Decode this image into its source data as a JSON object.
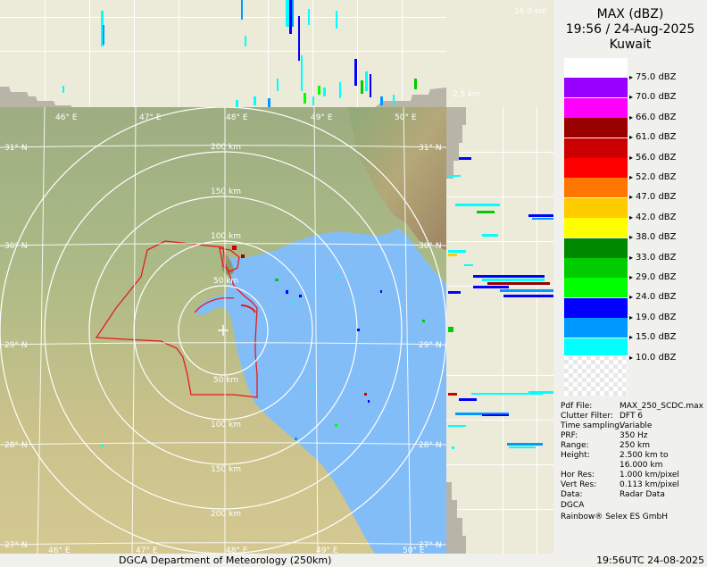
{
  "product": {
    "title": "MAX (dBZ)",
    "datetime": "19:56 / 24-Aug-2025",
    "site": "Kuwait"
  },
  "profiles": {
    "top_altitude": "16.0 km",
    "low_altitude": "2.5 km"
  },
  "color_scale": [
    {
      "label": "75.0 dBZ",
      "color": "#ffffff"
    },
    {
      "label": "70.0 dBZ",
      "color": "#9900ff"
    },
    {
      "label": "66.0 dBZ",
      "color": "#ff00ff"
    },
    {
      "label": "61.0 dBZ",
      "color": "#990000"
    },
    {
      "label": "56.0 dBZ",
      "color": "#cc0000"
    },
    {
      "label": "52.0 dBZ",
      "color": "#ff0000"
    },
    {
      "label": "47.0 dBZ",
      "color": "#ff7700"
    },
    {
      "label": "42.0 dBZ",
      "color": "#ffcc00"
    },
    {
      "label": "38.0 dBZ",
      "color": "#ffff00"
    },
    {
      "label": "33.0 dBZ",
      "color": "#008800"
    },
    {
      "label": "29.0 dBZ",
      "color": "#00cc00"
    },
    {
      "label": "24.0 dBZ",
      "color": "#00ff00"
    },
    {
      "label": "19.0 dBZ",
      "color": "#0000ff"
    },
    {
      "label": "15.0 dBZ",
      "color": "#0099ff"
    },
    {
      "label": "10.0 dBZ",
      "color": "#00ffff"
    }
  ],
  "metadata": [
    {
      "key": "Pdf File:",
      "value": "MAX_250_SCDC.max"
    },
    {
      "key": "Clutter Filter:",
      "value": "DFT 6"
    },
    {
      "key": "Time sampling:",
      "value": "Variable"
    },
    {
      "key": "PRF:",
      "value": "350 Hz"
    },
    {
      "key": "Range:",
      "value": "250 km"
    },
    {
      "key": "Height:",
      "value": "2.500 km to"
    },
    {
      "key": "",
      "value": "16.000 km"
    },
    {
      "key": "Hor Res:",
      "value": "1.000 km/pixel"
    },
    {
      "key": "Vert Res:",
      "value": "0.113 km/pixel"
    },
    {
      "key": "Data:",
      "value": "Radar Data"
    }
  ],
  "credits": {
    "org": "DGCA",
    "vendor": "Rainbow® Selex ES GmbH"
  },
  "map": {
    "lon_labels": [
      "46° E",
      "47° E",
      "48° E",
      "49° E",
      "50° E"
    ],
    "lat_labels": [
      "31° N",
      "30° N",
      "29° N",
      "28° N",
      "27° N"
    ],
    "range_labels_north": [
      "50 km",
      "100 km",
      "150 km",
      "200 km"
    ],
    "range_labels_south": [
      "50 km",
      "100 km",
      "150 km",
      "200 km"
    ],
    "colors": {
      "sea": "#82bdf7",
      "land_desert": "#c8c288",
      "land_green": "#8fb07a",
      "border": "#e8191c",
      "rings": "#ffffff"
    }
  },
  "footer": {
    "left": "DGCA Department of Meteorology (250km)",
    "right": "19:56UTC 24-08-2025"
  }
}
